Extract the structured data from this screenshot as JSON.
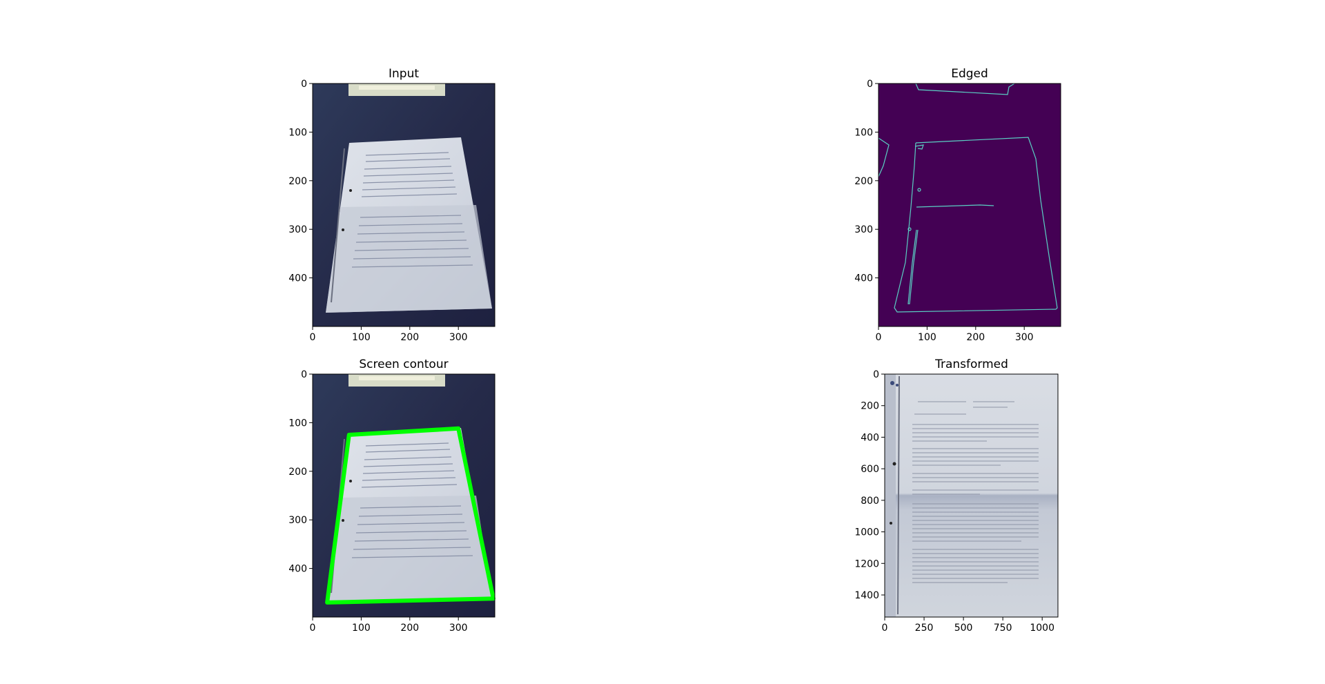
{
  "figure": {
    "background": "#ffffff"
  },
  "chart_data": [
    {
      "type": "image",
      "title": "Input",
      "image_shape": [
        375,
        500
      ],
      "x_ticks": [
        0,
        100,
        200,
        300
      ],
      "y_ticks": [
        0,
        100,
        200,
        300,
        400
      ],
      "colors": {
        "background": "#272b4a",
        "paper": "#d7dbe4",
        "text_lines": "#8a92a8"
      }
    },
    {
      "type": "image",
      "title": "Edged",
      "image_shape": [
        375,
        500
      ],
      "x_ticks": [
        0,
        100,
        200,
        300
      ],
      "y_ticks": [
        0,
        100,
        200,
        300,
        400
      ],
      "colors": {
        "background": "#440154",
        "edges": "#5ad1c4"
      }
    },
    {
      "type": "image",
      "title": "Screen contour",
      "image_shape": [
        375,
        500
      ],
      "x_ticks": [
        0,
        100,
        200,
        300
      ],
      "y_ticks": [
        0,
        100,
        200,
        300,
        400
      ],
      "contour": [
        [
          75,
          125
        ],
        [
          300,
          112
        ],
        [
          372,
          462
        ],
        [
          30,
          470
        ]
      ],
      "colors": {
        "background": "#272b4a",
        "paper": "#d7dbe4",
        "contour": "#00ff00"
      }
    },
    {
      "type": "image",
      "title": "Transformed",
      "image_shape": [
        1100,
        1540
      ],
      "x_ticks": [
        0,
        250,
        500,
        750,
        1000
      ],
      "y_ticks": [
        0,
        200,
        400,
        600,
        800,
        1000,
        1200,
        1400
      ],
      "colors": {
        "paper": "#c9ced8",
        "shadow": "#a7afc0"
      }
    }
  ]
}
